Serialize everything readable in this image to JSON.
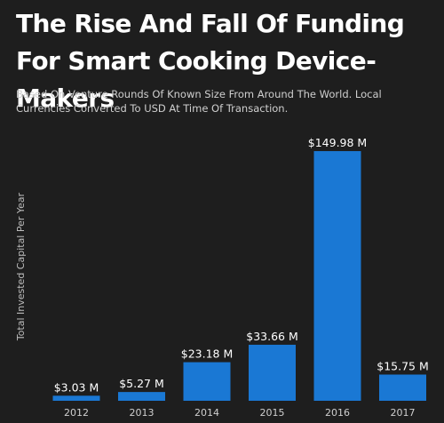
{
  "title": "The Rise And Fall Of Funding For Smart Cooking Device-Makers",
  "subtitle": "Based On Venture Rounds Of Known Size From Around The World. Local Currencies Converted To USD At Time Of Transaction.",
  "colors": {
    "background": "#1e1e1e",
    "bar": "#1a78d4"
  },
  "chart_data": {
    "type": "bar",
    "title": "The Rise And Fall Of Funding For Smart Cooking Device-Makers",
    "subtitle": "Based On Venture Rounds Of Known Size From Around The World. Local Currencies Converted To USD At Time Of Transaction.",
    "xlabel": "",
    "ylabel": "Total Invested Capital Per Year",
    "categories": [
      "2012",
      "2013",
      "2014",
      "2015",
      "2016",
      "2017"
    ],
    "values": [
      3.03,
      5.27,
      23.18,
      33.66,
      149.98,
      15.75
    ],
    "value_labels": [
      "$3.03 M",
      "$5.27 M",
      "$23.18 M",
      "$33.66 M",
      "$149.98 M",
      "$15.75 M"
    ],
    "unit": "USD millions",
    "ylim": [
      0,
      150
    ],
    "grid": false,
    "legend": "none"
  }
}
